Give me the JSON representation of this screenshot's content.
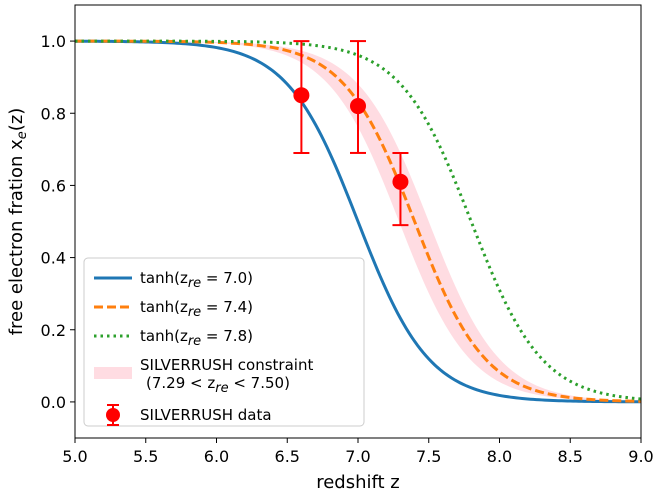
{
  "chart_data": {
    "type": "line",
    "xlabel": "redshift z",
    "ylabel": "free electron fration x_e(z)",
    "xlim": [
      5.0,
      9.0
    ],
    "ylim": [
      -0.1,
      1.1
    ],
    "xticks": [
      "5.0",
      "5.5",
      "6.0",
      "6.5",
      "7.0",
      "7.5",
      "8.0",
      "8.5",
      "9.0"
    ],
    "yticks": [
      "0.0",
      "0.2",
      "0.4",
      "0.6",
      "0.8",
      "1.0"
    ],
    "grid": false,
    "legend_position": "lower-left",
    "series": [
      {
        "name": "tanh(z_re = 7.0)",
        "style": "solid",
        "color": "#1f77b4",
        "z_re": 7.0,
        "delta_z": 0.5
      },
      {
        "name": "tanh(z_re = 7.4)",
        "style": "dashed",
        "color": "#ff7f0e",
        "z_re": 7.4,
        "delta_z": 0.5
      },
      {
        "name": "tanh(z_re = 7.8)",
        "style": "dotted",
        "color": "#2ca02c",
        "z_re": 7.8,
        "delta_z": 0.5
      }
    ],
    "band": {
      "name": "SILVERRUSH constraint",
      "name_line2": "(7.29 < z_re < 7.50)",
      "z_re_low": 7.29,
      "z_re_high": 7.5,
      "delta_z": 0.5,
      "color": "#ffc0cb"
    },
    "points": {
      "name": "SILVERRUSH data",
      "color": "#ff0000",
      "x": [
        6.6,
        7.0,
        7.3
      ],
      "y": [
        0.85,
        0.82,
        0.61
      ],
      "yerr_low": [
        0.16,
        0.13,
        0.12
      ],
      "yerr_high": [
        0.15,
        0.18,
        0.08
      ]
    }
  }
}
